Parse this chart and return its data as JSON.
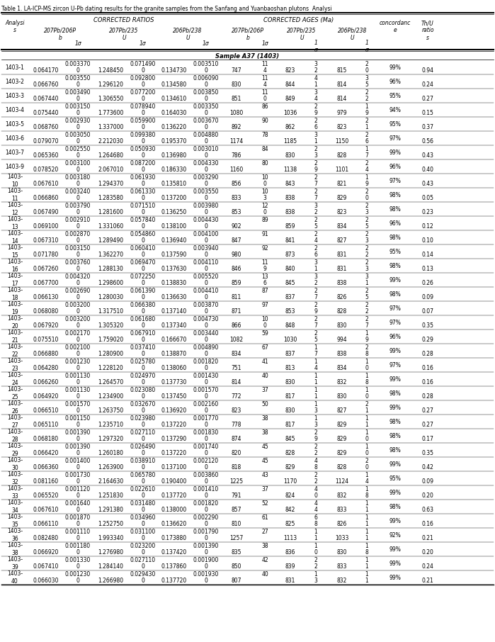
{
  "title": "Table 1. LA-ICP-MS zircon U-Pb dating results for the granite samples from the Sanfang and Yuanbaoshan plutons  Analysi",
  "sample_label": "Sample A37 (1403)",
  "rows": [
    [
      "1403-1",
      "0.064170",
      "0.003370",
      "0",
      "1.248450",
      "0.071490",
      "0",
      "0.134730",
      "0.003510",
      "0",
      "747",
      "11",
      "4",
      "823",
      "3",
      "2",
      "815",
      "2",
      "0",
      "99%",
      "0.94"
    ],
    [
      "1403-2",
      "0.066760",
      "0.003550",
      "0",
      "1.296120",
      "0.092800",
      "0",
      "0.134580",
      "0.006090",
      "0",
      "830",
      "11",
      "4",
      "844",
      "4",
      "1",
      "814",
      "3",
      "5",
      "96%",
      "0.24"
    ],
    [
      "1403-3",
      "0.067440",
      "0.003490",
      "0",
      "1.306550",
      "0.077200",
      "0",
      "0.134610",
      "0.003850",
      "0",
      "851",
      "11",
      "0",
      "849",
      "3",
      "4",
      "814",
      "2",
      "2",
      "95%",
      "0.27"
    ],
    [
      "1403-4",
      "0.075440",
      "0.003150",
      "0",
      "1.773600",
      "0.078940",
      "0",
      "0.164030",
      "0.003350",
      "0",
      "1080",
      "86",
      "",
      "1036",
      "2",
      "9",
      "979",
      "1",
      "9",
      "94%",
      "0.15"
    ],
    [
      "1403-5",
      "0.068760",
      "0.002930",
      "0",
      "1.337000",
      "0.059900",
      "0",
      "0.136220",
      "0.003670",
      "0",
      "892",
      "90",
      "",
      "862",
      "2",
      "6",
      "823",
      "2",
      "1",
      "95%",
      "0.37"
    ],
    [
      "1403-6",
      "0.079070",
      "0.003050",
      "0",
      "2.212030",
      "0.099380",
      "0",
      "0.195370",
      "0.004880",
      "0",
      "1174",
      "78",
      "",
      "1185",
      "3",
      "1",
      "1150",
      "2",
      "6",
      "97%",
      "0.56"
    ],
    [
      "1403-7",
      "0.065360",
      "0.002550",
      "0",
      "1.264680",
      "0.050930",
      "0",
      "0.136980",
      "0.003010",
      "0",
      "786",
      "84",
      "",
      "830",
      "2",
      "3",
      "828",
      "1",
      "7",
      "99%",
      "0.43"
    ],
    [
      "1403-9",
      "0.078520",
      "0.003100",
      "0",
      "2.067010",
      "0.087200",
      "0",
      "0.186330",
      "0.004330",
      "0",
      "1160",
      "80",
      "",
      "1138",
      "2",
      "9",
      "1101",
      "2",
      "4",
      "96%",
      "0.40"
    ],
    [
      "1403-\n10",
      "0.067610",
      "0.003180",
      "0",
      "1.294370",
      "0.061930",
      "0",
      "0.135810",
      "0.003290",
      "0",
      "856",
      "10",
      "0",
      "843",
      "2",
      "7",
      "821",
      "1",
      "9",
      "97%",
      "0.43"
    ],
    [
      "1403-\n11",
      "0.066860",
      "0.003240",
      "0",
      "1.283580",
      "0.061330",
      "0",
      "0.137200",
      "0.003550",
      "0",
      "833",
      "10",
      "3",
      "838",
      "2",
      "7",
      "829",
      "2",
      "0",
      "98%",
      "0.05"
    ],
    [
      "1403-\n12",
      "0.067490",
      "0.003790",
      "0",
      "1.281600",
      "0.071510",
      "0",
      "0.136250",
      "0.003980",
      "0",
      "853",
      "12",
      "0",
      "838",
      "3",
      "2",
      "823",
      "2",
      "3",
      "98%",
      "0.23"
    ],
    [
      "1403-\n13",
      "0.069100",
      "0.002910",
      "0",
      "1.331060",
      "0.057840",
      "0",
      "0.138100",
      "0.004430",
      "0",
      "902",
      "89",
      "",
      "859",
      "2",
      "5",
      "834",
      "2",
      "5",
      "96%",
      "0.12"
    ],
    [
      "1403-\n14",
      "0.067310",
      "0.002870",
      "0",
      "1.289490",
      "0.054860",
      "0",
      "0.136940",
      "0.004100",
      "0",
      "847",
      "91",
      "",
      "841",
      "2",
      "4",
      "827",
      "2",
      "3",
      "98%",
      "0.10"
    ],
    [
      "1403-\n15",
      "0.071780",
      "0.003150",
      "0",
      "1.362270",
      "0.060410",
      "0",
      "0.137590",
      "0.003940",
      "0",
      "980",
      "92",
      "",
      "873",
      "2",
      "6",
      "831",
      "2",
      "2",
      "95%",
      "0.14"
    ],
    [
      "1403-\n16",
      "0.067260",
      "0.003760",
      "0",
      "1.288130",
      "0.069470",
      "0",
      "0.137630",
      "0.004110",
      "0",
      "846",
      "11",
      "9",
      "840",
      "3",
      "1",
      "831",
      "2",
      "3",
      "98%",
      "0.13"
    ],
    [
      "1403-\n17",
      "0.067700",
      "0.004320",
      "0",
      "1.298600",
      "0.072250",
      "0",
      "0.138830",
      "0.005520",
      "0",
      "859",
      "13",
      "6",
      "845",
      "3",
      "2",
      "838",
      "3",
      "1",
      "99%",
      "0.26"
    ],
    [
      "1403-\n18",
      "0.066130",
      "0.002690",
      "0",
      "1.280030",
      "0.061390",
      "0",
      "0.136630",
      "0.004410",
      "0",
      "811",
      "87",
      "",
      "837",
      "2",
      "7",
      "826",
      "2",
      "5",
      "98%",
      "0.09"
    ],
    [
      "1403-\n19",
      "0.068080",
      "0.003200",
      "0",
      "1.317510",
      "0.066380",
      "0",
      "0.137140",
      "0.003870",
      "0",
      "871",
      "97",
      "",
      "853",
      "2",
      "9",
      "828",
      "2",
      "2",
      "97%",
      "0.07"
    ],
    [
      "1403-\n20",
      "0.067920",
      "0.003200",
      "0",
      "1.305320",
      "0.061680",
      "0",
      "0.137340",
      "0.004730",
      "0",
      "866",
      "10",
      "0",
      "848",
      "2",
      "7",
      "830",
      "2",
      "7",
      "97%",
      "0.35"
    ],
    [
      "1403-\n21",
      "0.075510",
      "0.002170",
      "0",
      "1.759020",
      "0.067910",
      "0",
      "0.166670",
      "0.003440",
      "0",
      "1082",
      "59",
      "",
      "1030",
      "2",
      "5",
      "994",
      "1",
      "9",
      "96%",
      "0.29"
    ],
    [
      "1403-\n22",
      "0.066880",
      "0.002100",
      "0",
      "1.280900",
      "0.037410",
      "0",
      "0.138870",
      "0.004890",
      "0",
      "834",
      "67",
      "",
      "837",
      "1",
      "7",
      "838",
      "2",
      "8",
      "99%",
      "0.28"
    ],
    [
      "1403-\n23",
      "0.064280",
      "0.001230",
      "0",
      "1.228120",
      "0.025780",
      "0",
      "0.138060",
      "0.001820",
      "0",
      "751",
      "41",
      "",
      "813",
      "1",
      "4",
      "834",
      "1",
      "0",
      "97%",
      "0.16"
    ],
    [
      "1403-\n24",
      "0.066260",
      "0.001130",
      "0",
      "1.264570",
      "0.024970",
      "0",
      "0.137730",
      "0.001430",
      "0",
      "814",
      "40",
      "",
      "830",
      "1",
      "1",
      "832",
      "1",
      "8",
      "99%",
      "0.16"
    ],
    [
      "1403-\n25",
      "0.064920",
      "0.001130",
      "0",
      "1.234900",
      "0.023080",
      "0",
      "0.137450",
      "0.001570",
      "0",
      "772",
      "37",
      "",
      "817",
      "1",
      "1",
      "830",
      "1",
      "0",
      "98%",
      "0.28"
    ],
    [
      "1403-\n26",
      "0.066510",
      "0.001570",
      "0",
      "1.263750",
      "0.032670",
      "0",
      "0.136920",
      "0.002160",
      "0",
      "823",
      "50",
      "",
      "830",
      "1",
      "3",
      "827",
      "2",
      "1",
      "99%",
      "0.27"
    ],
    [
      "1403-\n27",
      "0.065110",
      "0.001150",
      "0",
      "1.235710",
      "0.023980",
      "0",
      "0.137220",
      "0.001770",
      "0",
      "778",
      "38",
      "",
      "817",
      "1",
      "3",
      "829",
      "1",
      "1",
      "98%",
      "0.27"
    ],
    [
      "1403-\n28",
      "0.068180",
      "0.001390",
      "0",
      "1.297320",
      "0.027110",
      "0",
      "0.137290",
      "0.001830",
      "0",
      "874",
      "38",
      "",
      "845",
      "2",
      "9",
      "829",
      "1",
      "0",
      "98%",
      "0.17"
    ],
    [
      "1403-\n29",
      "0.066420",
      "0.001390",
      "0",
      "1.260180",
      "0.026490",
      "0",
      "0.137220",
      "0.001740",
      "0",
      "820",
      "45",
      "",
      "828",
      "2",
      "2",
      "829",
      "1",
      "0",
      "98%",
      "0.35"
    ],
    [
      "1403-\n30",
      "0.066360",
      "0.001400",
      "0",
      "1.263900",
      "0.038910",
      "0",
      "0.137100",
      "0.002120",
      "0",
      "818",
      "45",
      "",
      "829",
      "4",
      "8",
      "828",
      "2",
      "0",
      "99%",
      "0.42"
    ],
    [
      "1403-\n32",
      "0.081160",
      "0.001730",
      "0",
      "2.164630",
      "0.065780",
      "0",
      "0.190400",
      "0.003860",
      "0",
      "1225",
      "43",
      "",
      "1170",
      "2",
      "2",
      "1124",
      "1",
      "4",
      "95%",
      "0.09"
    ],
    [
      "1403-\n33",
      "0.065520",
      "0.001120",
      "0",
      "1.251830",
      "0.022610",
      "0",
      "0.137720",
      "0.001410",
      "0",
      "791",
      "37",
      "",
      "824",
      "4",
      "0",
      "832",
      "1",
      "8",
      "99%",
      "0.20"
    ],
    [
      "1403-\n34",
      "0.067610",
      "0.001640",
      "0",
      "1.291380",
      "0.031480",
      "0",
      "0.138000",
      "0.001820",
      "0",
      "857",
      "52",
      "",
      "842",
      "4",
      "4",
      "833",
      "1",
      "1",
      "98%",
      "0.63"
    ],
    [
      "1403-\n35",
      "0.066110",
      "0.001870",
      "0",
      "1.252750",
      "0.034960",
      "0",
      "0.136620",
      "0.002290",
      "0",
      "810",
      "61",
      "",
      "825",
      "6",
      "8",
      "826",
      "1",
      "1",
      "99%",
      "0.16"
    ],
    [
      "1403-\n36",
      "0.082480",
      "0.001110",
      "0",
      "1.993340",
      "0.031100",
      "0",
      "0.173880",
      "0.001790",
      "0",
      "1257",
      "27",
      "",
      "1113",
      "1",
      "1",
      "1033",
      "1",
      "1",
      "92%",
      "0.21"
    ],
    [
      "1403-\n38",
      "0.066920",
      "0.001180",
      "0",
      "1.276980",
      "0.023200",
      "0",
      "0.137420",
      "0.001390",
      "0",
      "835",
      "38",
      "",
      "836",
      "1",
      "0",
      "830",
      "1",
      "8",
      "99%",
      "0.20"
    ],
    [
      "1403-\n39",
      "0.067410",
      "0.001330",
      "0",
      "1.284140",
      "0.027110",
      "0",
      "0.137860",
      "0.001900",
      "0",
      "850",
      "42",
      "",
      "839",
      "2",
      "2",
      "833",
      "1",
      "1",
      "99%",
      "0.24"
    ],
    [
      "1403-\n40",
      "0.066030",
      "0.001230",
      "0",
      "1.266980",
      "0.029430",
      "0",
      "0.137720",
      "0.001930",
      "0",
      "807",
      "40",
      "",
      "831",
      "1",
      "3",
      "832",
      "1",
      "1",
      "99%",
      "0.21"
    ]
  ],
  "bg_color": "#ffffff",
  "text_color": "#000000",
  "line_color": "#000000"
}
